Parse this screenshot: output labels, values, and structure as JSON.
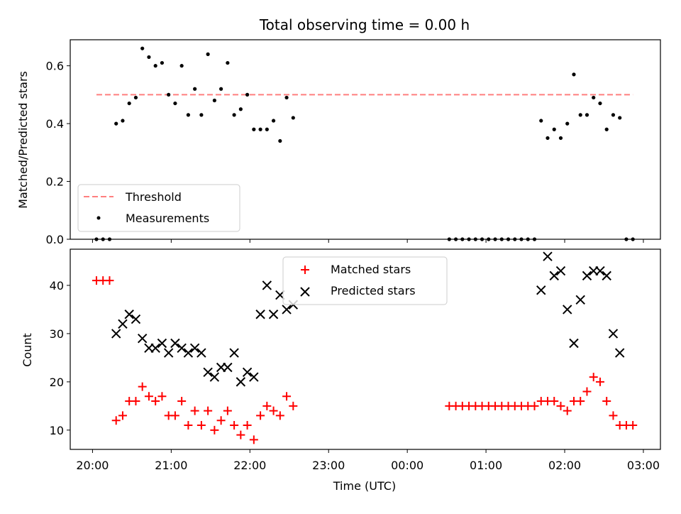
{
  "chart_data": [
    {
      "type": "scatter",
      "title": "Total observing time = 0.00 h",
      "xlabel": "",
      "ylabel": "Matched/Predicted stars",
      "ylim": [
        0,
        0.69
      ],
      "y_ticks": [
        "0.0",
        "0.2",
        "0.4",
        "0.6"
      ],
      "legend_position": "lower left",
      "series": [
        {
          "name": "Threshold",
          "kind": "dashed-line",
          "color": "#ff7f7f",
          "x": [
            "20:03",
            "02:52"
          ],
          "y": [
            0.5,
            0.5
          ]
        },
        {
          "name": "Measurements",
          "kind": "dots",
          "color": "#000000",
          "x": [
            "20:03",
            "20:08",
            "20:13",
            "20:18",
            "20:23",
            "20:28",
            "20:33",
            "20:38",
            "20:43",
            "20:48",
            "20:53",
            "20:58",
            "21:03",
            "21:08",
            "21:13",
            "21:18",
            "21:23",
            "21:28",
            "21:33",
            "21:38",
            "21:43",
            "21:48",
            "21:53",
            "21:58",
            "22:03",
            "22:08",
            "22:13",
            "22:18",
            "22:23",
            "22:28",
            "22:33",
            "00:32",
            "00:37",
            "00:42",
            "00:47",
            "00:52",
            "00:57",
            "01:02",
            "01:07",
            "01:12",
            "01:17",
            "01:22",
            "01:27",
            "01:32",
            "01:37",
            "01:42",
            "01:47",
            "01:52",
            "01:57",
            "02:02",
            "02:07",
            "02:12",
            "02:17",
            "02:22",
            "02:27",
            "02:32",
            "02:37",
            "02:42",
            "02:47",
            "02:52"
          ],
          "y": [
            0,
            0,
            0,
            0.4,
            0.41,
            0.47,
            0.49,
            0.66,
            0.63,
            0.6,
            0.61,
            0.5,
            0.47,
            0.6,
            0.43,
            0.52,
            0.43,
            0.64,
            0.48,
            0.52,
            0.61,
            0.43,
            0.45,
            0.5,
            0.38,
            0.38,
            0.38,
            0.41,
            0.34,
            0.49,
            0.42,
            0,
            0,
            0,
            0,
            0,
            0,
            0,
            0,
            0,
            0,
            0,
            0,
            0,
            0,
            0.41,
            0.35,
            0.38,
            0.35,
            0.4,
            0.57,
            0.43,
            0.43,
            0.49,
            0.47,
            0.38,
            0.43,
            0.42,
            0,
            0
          ]
        }
      ]
    },
    {
      "type": "scatter",
      "title": "",
      "xlabel": "Time (UTC)",
      "ylabel": "Count",
      "ylim": [
        6,
        47.5
      ],
      "y_ticks": [
        "10",
        "20",
        "30",
        "40"
      ],
      "x_ticks": [
        "20:00",
        "21:00",
        "22:00",
        "23:00",
        "00:00",
        "01:00",
        "02:00",
        "03:00"
      ],
      "legend_position": "upper center",
      "series": [
        {
          "name": "Matched stars",
          "marker": "+",
          "color": "#ff0000",
          "x": [
            "20:03",
            "20:08",
            "20:13",
            "20:18",
            "20:23",
            "20:28",
            "20:33",
            "20:38",
            "20:43",
            "20:48",
            "20:53",
            "20:58",
            "21:03",
            "21:08",
            "21:13",
            "21:18",
            "21:23",
            "21:28",
            "21:33",
            "21:38",
            "21:43",
            "21:48",
            "21:53",
            "21:58",
            "22:03",
            "22:08",
            "22:13",
            "22:18",
            "22:23",
            "22:28",
            "22:33",
            "00:32",
            "00:37",
            "00:42",
            "00:47",
            "00:52",
            "00:57",
            "01:02",
            "01:07",
            "01:12",
            "01:17",
            "01:22",
            "01:27",
            "01:32",
            "01:37",
            "01:42",
            "01:47",
            "01:52",
            "01:57",
            "02:02",
            "02:07",
            "02:12",
            "02:17",
            "02:22",
            "02:27",
            "02:32",
            "02:37",
            "02:42",
            "02:47",
            "02:52"
          ],
          "y": [
            41,
            41,
            41,
            12,
            13,
            16,
            16,
            19,
            17,
            16,
            17,
            13,
            13,
            16,
            11,
            14,
            11,
            14,
            10,
            12,
            14,
            11,
            9,
            11,
            8,
            13,
            15,
            14,
            13,
            17,
            15,
            15,
            15,
            15,
            15,
            15,
            15,
            15,
            15,
            15,
            15,
            15,
            15,
            15,
            15,
            16,
            16,
            16,
            15,
            14,
            16,
            16,
            18,
            21,
            20,
            16,
            13,
            11,
            11,
            11
          ]
        },
        {
          "name": "Predicted stars",
          "marker": "x",
          "color": "#000000",
          "x": [
            "20:18",
            "20:23",
            "20:28",
            "20:33",
            "20:38",
            "20:43",
            "20:48",
            "20:53",
            "20:58",
            "21:03",
            "21:08",
            "21:13",
            "21:18",
            "21:23",
            "21:28",
            "21:33",
            "21:38",
            "21:43",
            "21:48",
            "21:53",
            "21:58",
            "22:03",
            "22:08",
            "22:13",
            "22:18",
            "22:23",
            "22:28",
            "22:33",
            "01:42",
            "01:47",
            "01:52",
            "01:57",
            "02:02",
            "02:07",
            "02:12",
            "02:17",
            "02:22",
            "02:27",
            "02:32",
            "02:37",
            "02:42"
          ],
          "y": [
            30,
            32,
            34,
            33,
            29,
            27,
            27,
            28,
            26,
            28,
            27,
            26,
            27,
            26,
            22,
            21,
            23,
            23,
            26,
            20,
            22,
            21,
            34,
            40,
            34,
            38,
            35,
            36,
            39,
            46,
            42,
            43,
            35,
            28,
            37,
            42,
            43,
            43,
            42,
            30,
            26
          ]
        }
      ]
    }
  ]
}
